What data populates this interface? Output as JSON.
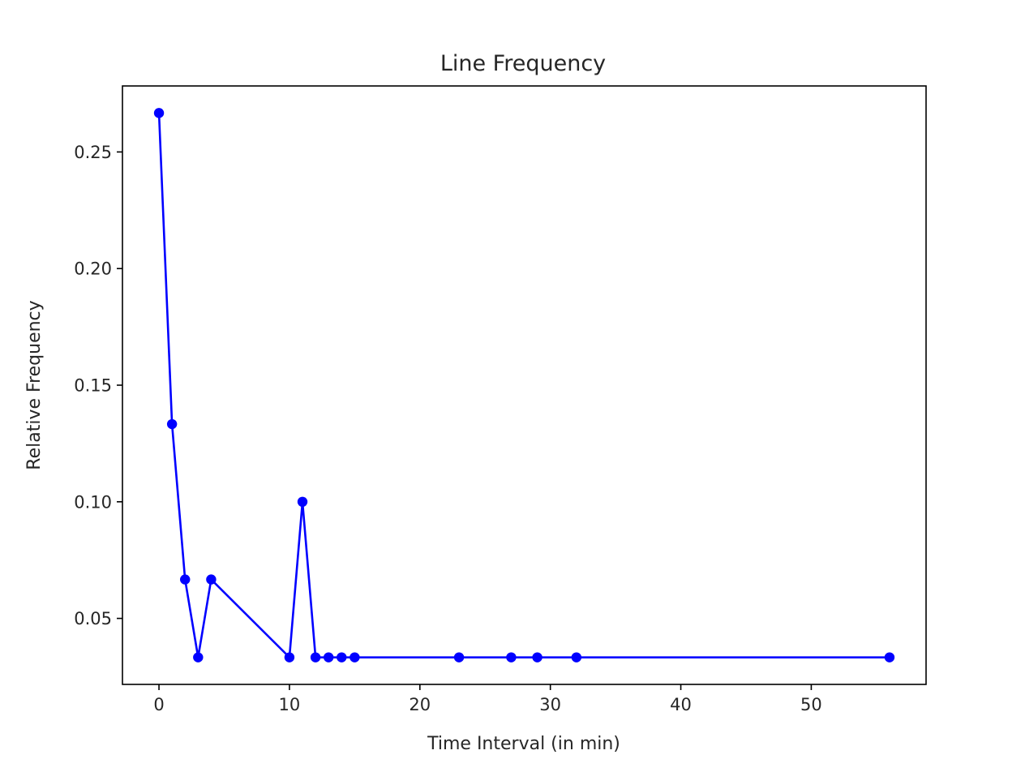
{
  "chart_data": {
    "type": "line",
    "title": "Line Frequency",
    "xlabel": "Time Interval (in min)",
    "ylabel": "Relative Frequency",
    "xlim": [
      -2.8,
      58.8
    ],
    "ylim": [
      0.0217,
      0.2783
    ],
    "xticks": [
      0,
      10,
      20,
      30,
      40,
      50
    ],
    "xtick_labels": [
      "0",
      "10",
      "20",
      "30",
      "40",
      "50"
    ],
    "yticks": [
      0.05,
      0.1,
      0.15,
      0.2,
      0.25
    ],
    "ytick_labels": [
      "0.05",
      "0.10",
      "0.15",
      "0.20",
      "0.25"
    ],
    "grid": false,
    "legend": "none",
    "series": [
      {
        "color": "#0000ff",
        "marker": "circle",
        "x": [
          0,
          1,
          2,
          3,
          4,
          10,
          11,
          12,
          13,
          14,
          15,
          23,
          27,
          29,
          32,
          56
        ],
        "y": [
          0.2667,
          0.1333,
          0.0667,
          0.0333,
          0.0667,
          0.0333,
          0.1,
          0.0333,
          0.0333,
          0.0333,
          0.0333,
          0.0333,
          0.0333,
          0.0333,
          0.0333,
          0.0333
        ]
      }
    ]
  }
}
